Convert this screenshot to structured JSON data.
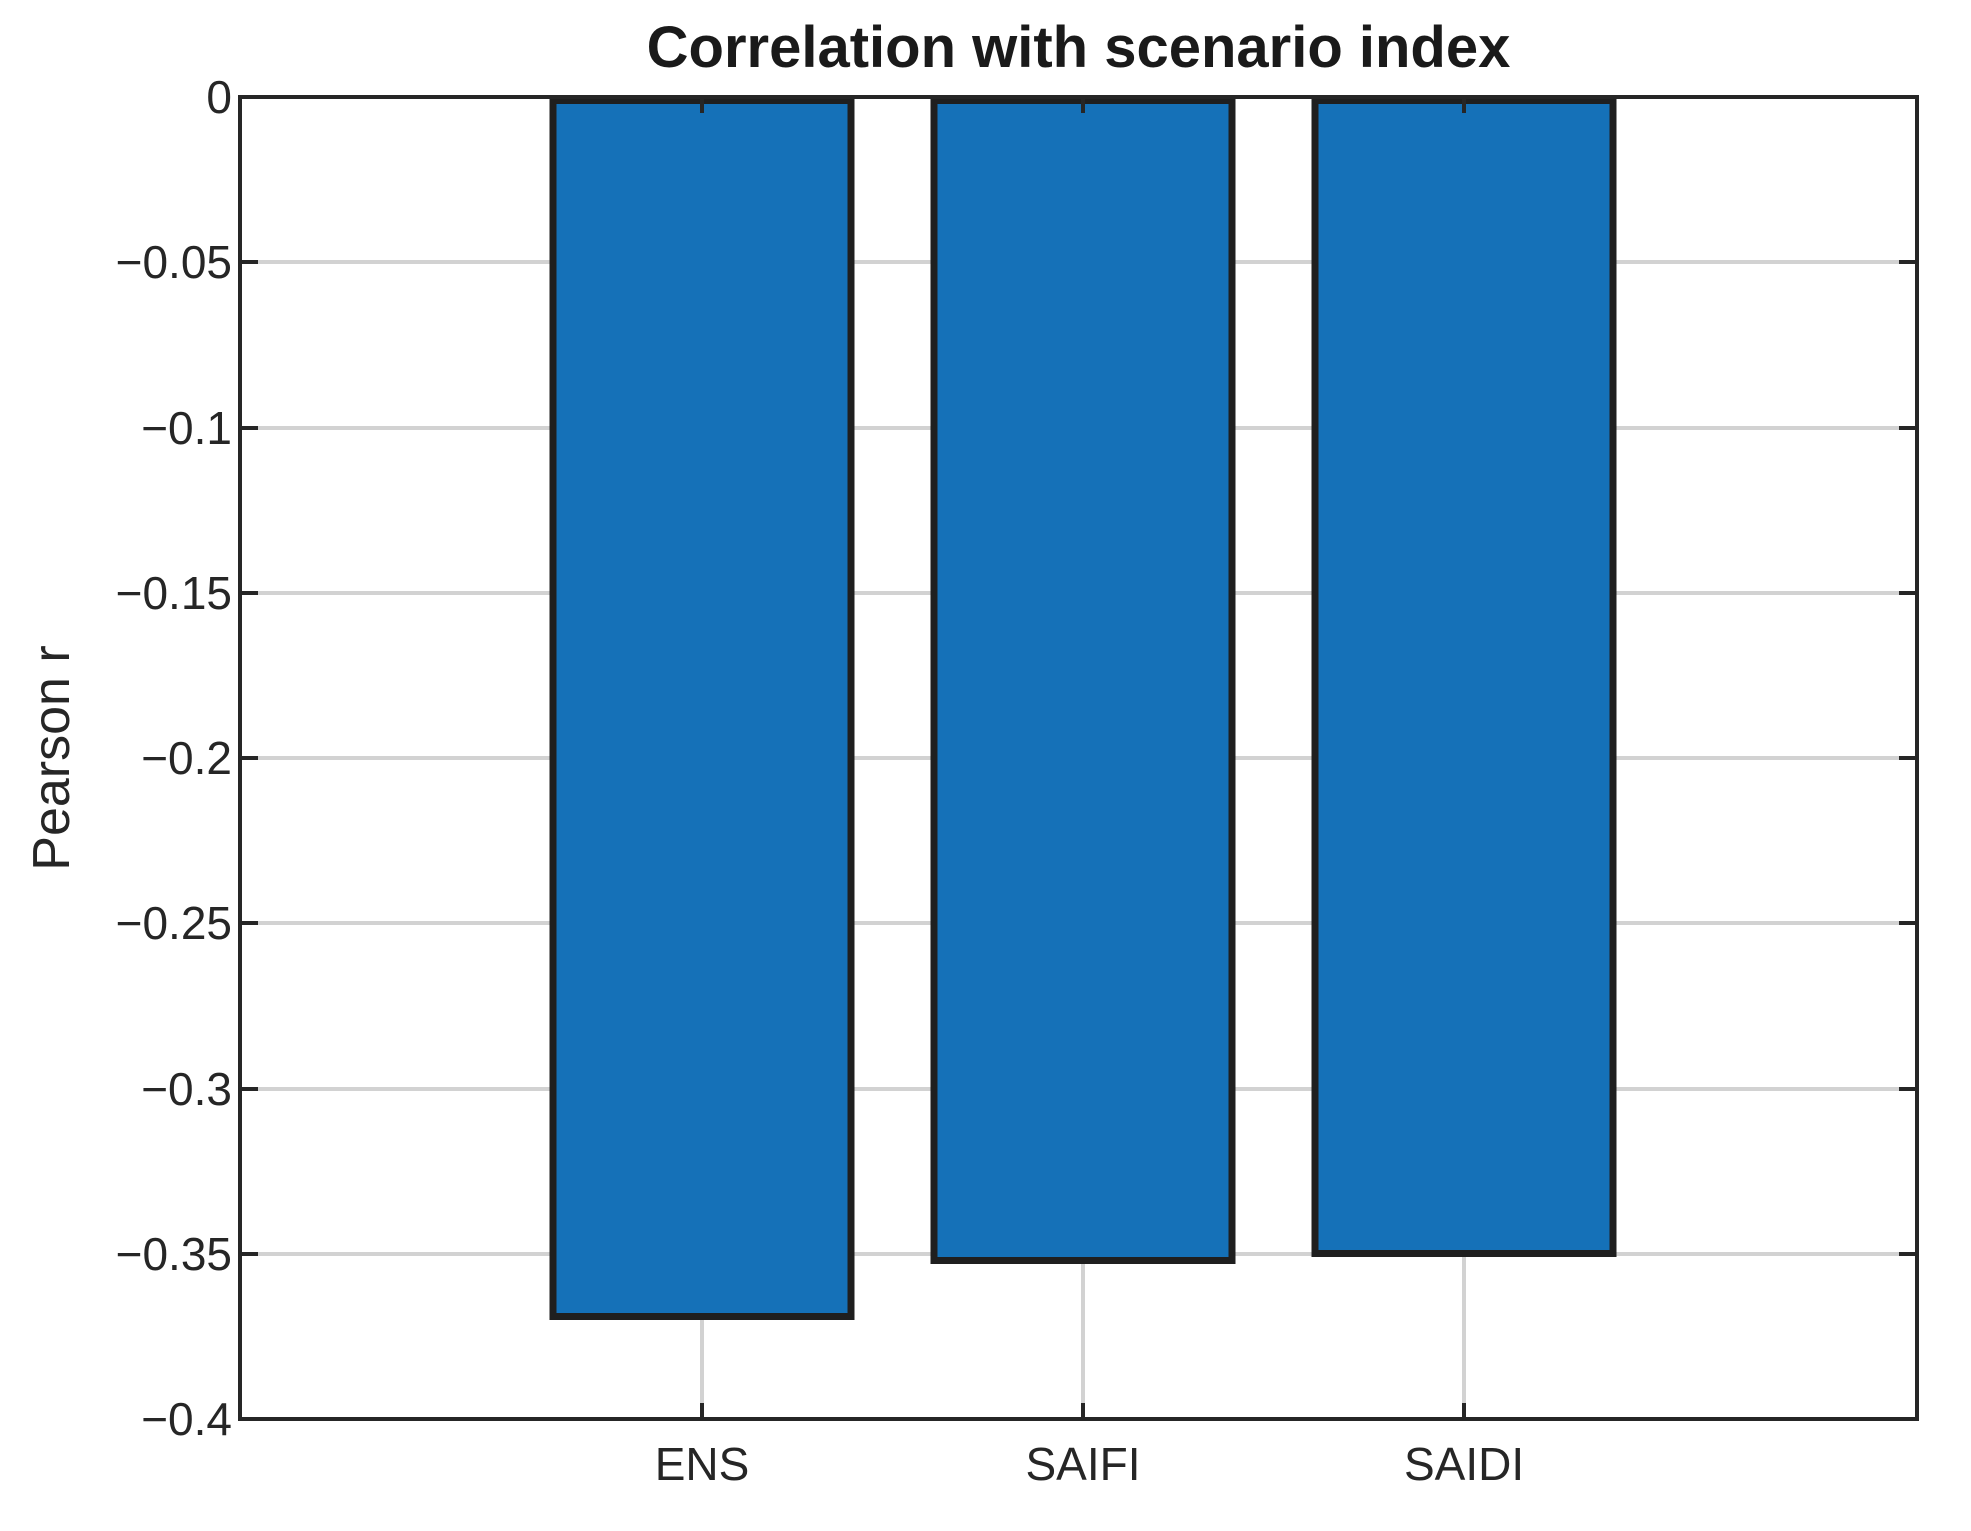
{
  "chart_data": {
    "type": "bar",
    "title": "Correlation with scenario index",
    "ylabel": "Pearson r",
    "xlabel": "",
    "categories": [
      "ENS",
      "SAIFI",
      "SAIDI"
    ],
    "values": [
      -0.37,
      -0.353,
      -0.351
    ],
    "ylim": [
      -0.4,
      0
    ],
    "yticks": [
      {
        "value": 0,
        "label": "0"
      },
      {
        "value": -0.05,
        "label": "−0.05"
      },
      {
        "value": -0.1,
        "label": "−0.1"
      },
      {
        "value": -0.15,
        "label": "−0.15"
      },
      {
        "value": -0.2,
        "label": "−0.2"
      },
      {
        "value": -0.25,
        "label": "−0.25"
      },
      {
        "value": -0.3,
        "label": "−0.3"
      },
      {
        "value": -0.35,
        "label": "−0.35"
      },
      {
        "value": -0.4,
        "label": "−0.4"
      }
    ],
    "grid": "on",
    "legend": false,
    "tick_direction": "in",
    "box": "on",
    "colors": {
      "bar_fill": "#1571b8",
      "bar_edge": "#1f1f1f",
      "axis": "#262626",
      "grid": "#d2d2d2",
      "background": "#ffffff"
    }
  }
}
